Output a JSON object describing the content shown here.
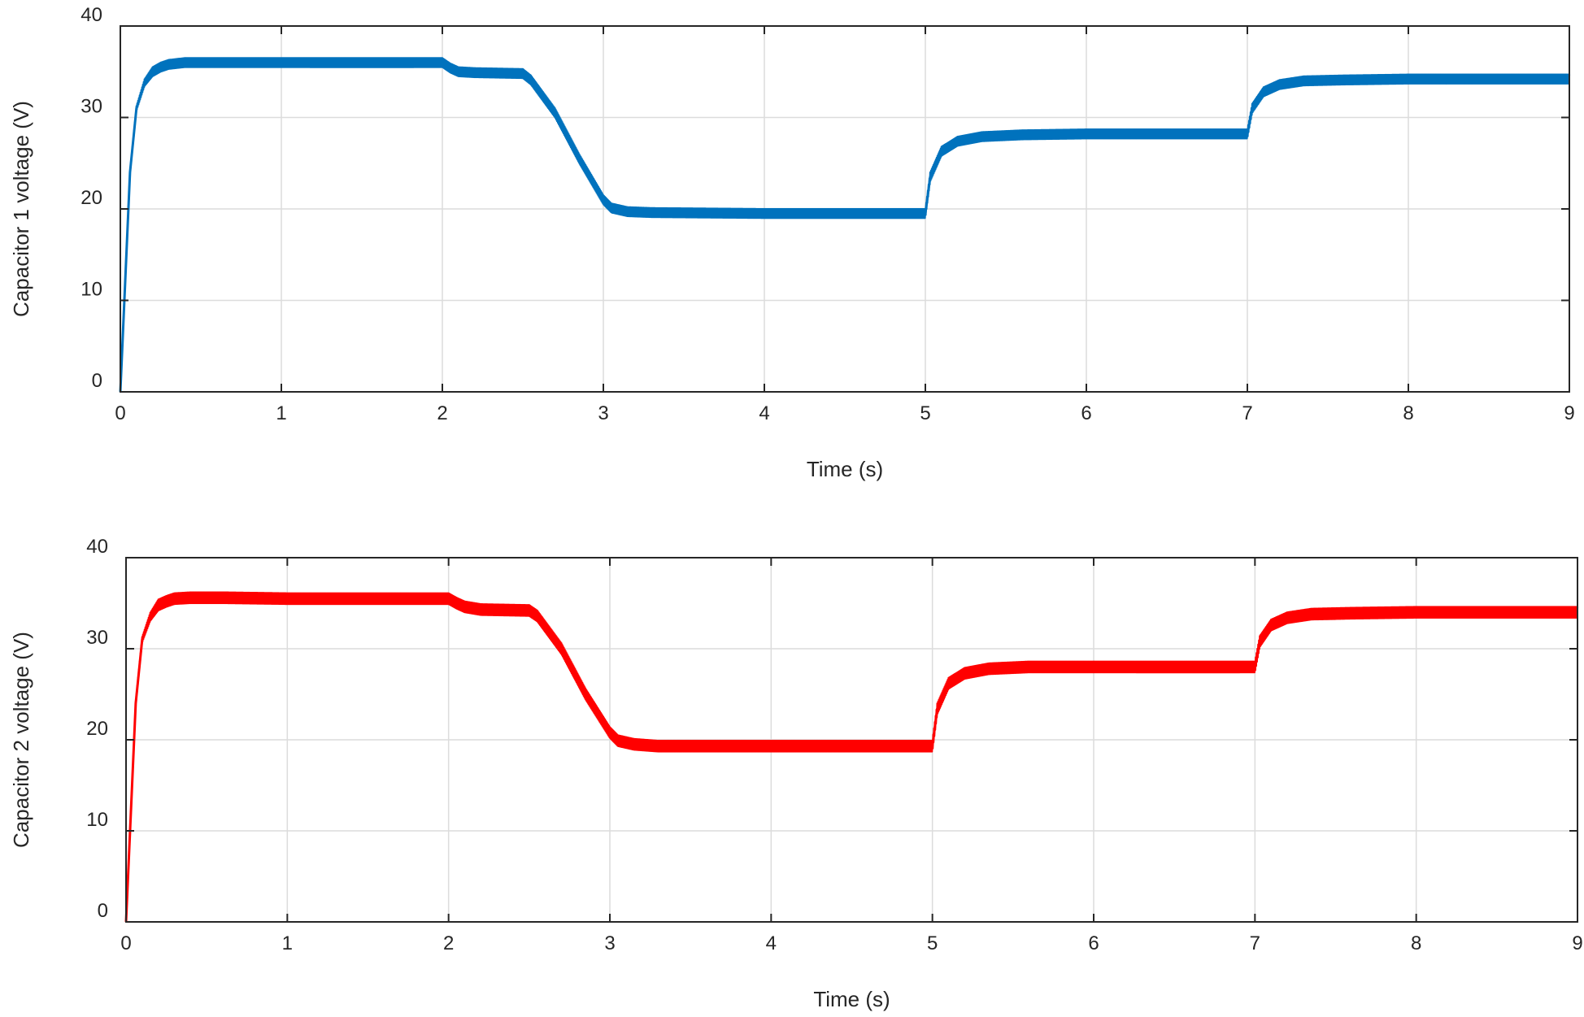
{
  "chart_data": [
    {
      "type": "line",
      "xlabel": "Time (s)",
      "ylabel": "Capacitor 1 voltage (V)",
      "xlim": [
        0,
        9
      ],
      "ylim": [
        0,
        40
      ],
      "xticks": [
        0,
        1,
        2,
        3,
        4,
        5,
        6,
        7,
        8,
        9
      ],
      "yticks": [
        0,
        10,
        20,
        30,
        40
      ],
      "grid": true,
      "ripple_v": 1.0,
      "series": [
        {
          "color": "#0072BD",
          "x": [
            0,
            0.03,
            0.06,
            0.1,
            0.15,
            0.2,
            0.25,
            0.3,
            0.4,
            0.6,
            1.0,
            1.5,
            2.0,
            2.05,
            2.1,
            2.2,
            2.5,
            2.55,
            2.7,
            2.85,
            3.0,
            3.05,
            3.15,
            3.3,
            4.0,
            5.0,
            5.03,
            5.1,
            5.2,
            5.35,
            5.6,
            6.0,
            7.0,
            7.03,
            7.1,
            7.2,
            7.35,
            7.6,
            8.0,
            9.0
          ],
          "y": [
            0,
            12,
            24,
            31,
            33.8,
            35.0,
            35.5,
            35.8,
            36.0,
            36.0,
            36.0,
            36.0,
            36.0,
            35.4,
            35.0,
            34.9,
            34.8,
            34.1,
            30.5,
            25.5,
            21.0,
            20.1,
            19.7,
            19.6,
            19.5,
            19.5,
            23.5,
            26.3,
            27.4,
            27.9,
            28.1,
            28.2,
            28.2,
            31.0,
            32.8,
            33.6,
            34.0,
            34.1,
            34.2,
            34.2
          ]
        }
      ]
    },
    {
      "type": "line",
      "xlabel": "Time (s)",
      "ylabel": "Capacitor 2 voltage (V)",
      "xlim": [
        0,
        9
      ],
      "ylim": [
        0,
        40
      ],
      "xticks": [
        0,
        1,
        2,
        3,
        4,
        5,
        6,
        7,
        8,
        9
      ],
      "yticks": [
        0,
        10,
        20,
        30,
        40
      ],
      "grid": true,
      "ripple_v": 1.2,
      "series": [
        {
          "color": "#FF0000",
          "x": [
            0,
            0.03,
            0.06,
            0.1,
            0.15,
            0.2,
            0.25,
            0.3,
            0.4,
            0.6,
            1.0,
            1.5,
            2.0,
            2.05,
            2.1,
            2.2,
            2.5,
            2.55,
            2.7,
            2.85,
            3.0,
            3.05,
            3.15,
            3.3,
            4.0,
            5.0,
            5.03,
            5.1,
            5.2,
            5.35,
            5.6,
            6.0,
            7.0,
            7.03,
            7.1,
            7.2,
            7.35,
            7.6,
            8.0,
            9.0
          ],
          "y": [
            0,
            12,
            24,
            31,
            33.5,
            34.8,
            35.2,
            35.5,
            35.6,
            35.6,
            35.5,
            35.5,
            35.5,
            35.0,
            34.6,
            34.3,
            34.2,
            33.6,
            30.0,
            25.0,
            20.8,
            19.9,
            19.5,
            19.3,
            19.3,
            19.3,
            23.4,
            26.2,
            27.3,
            27.8,
            28.0,
            28.0,
            28.0,
            30.8,
            32.6,
            33.4,
            33.8,
            33.9,
            34.0,
            34.0
          ]
        }
      ]
    }
  ]
}
